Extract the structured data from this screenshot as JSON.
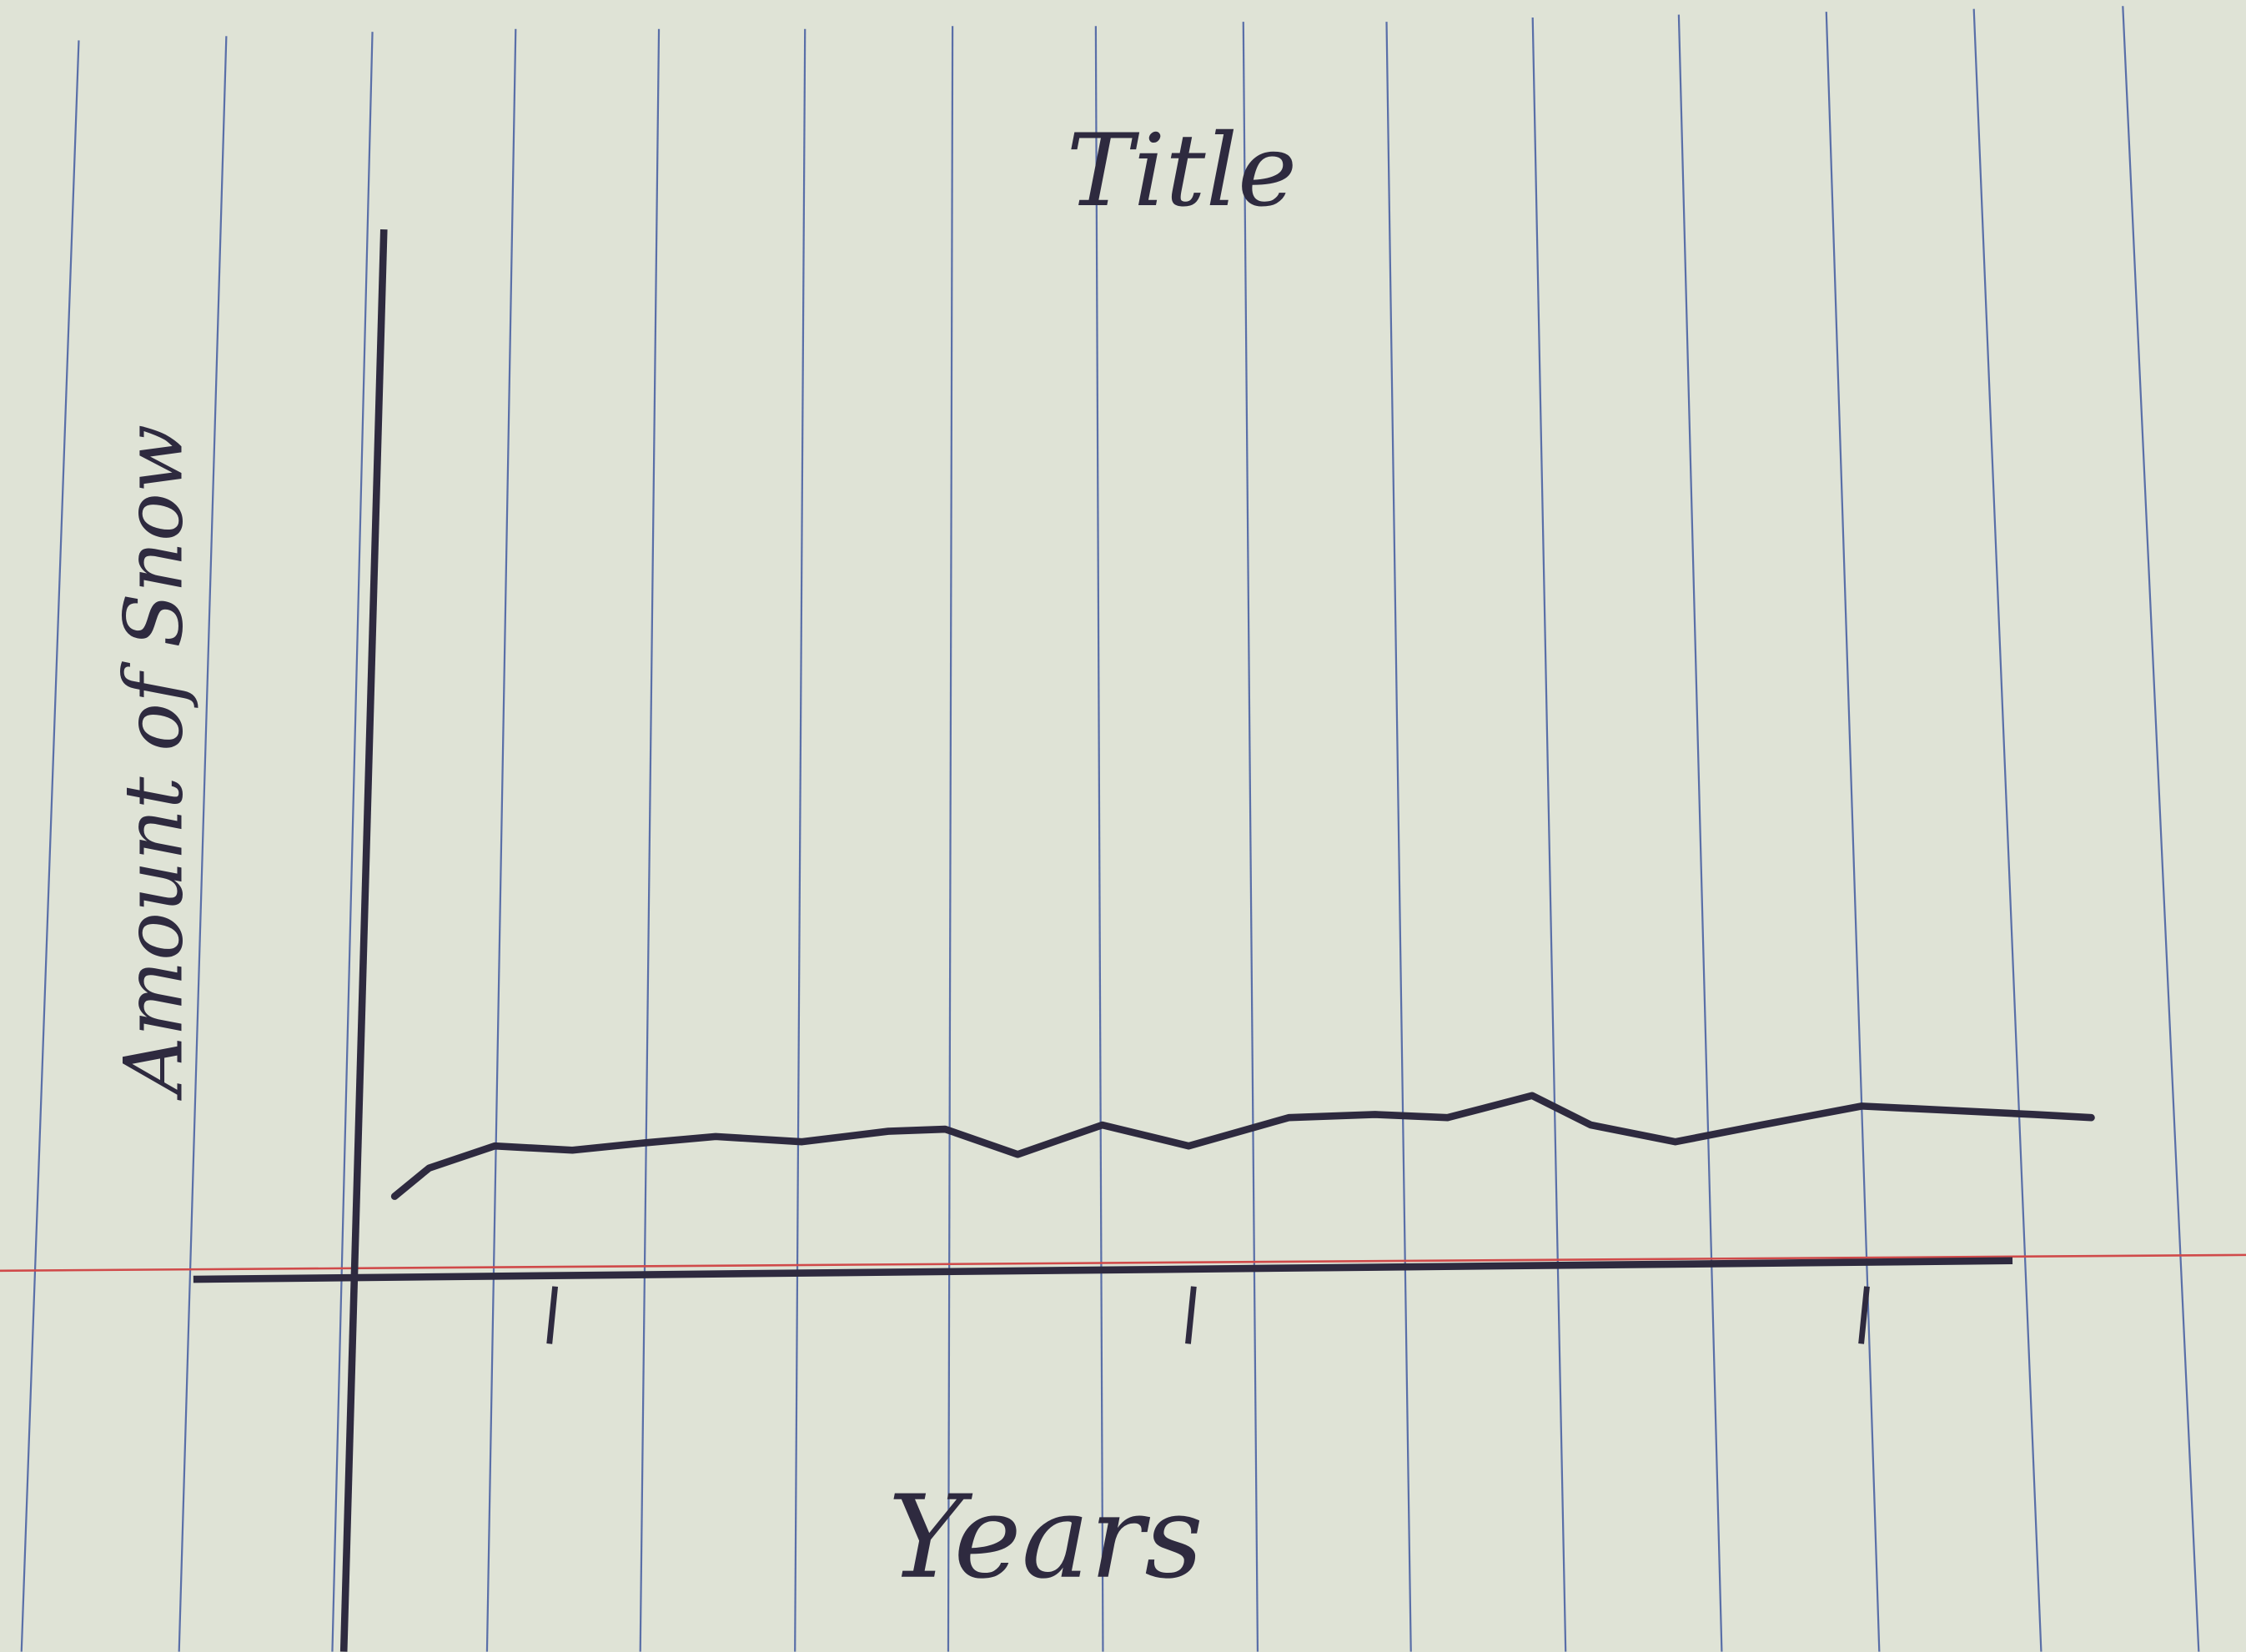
{
  "chart_data": {
    "type": "line",
    "title": "Title",
    "x_label": "Years",
    "y_label": "Amount of Snow",
    "x": [
      1.7,
      3.7,
      7.5,
      12,
      16.2,
      20.3,
      25.3,
      30.3,
      33.6,
      37.8,
      42.7,
      47.7,
      53.5,
      58.5,
      62.7,
      67.6,
      71,
      75.9,
      80.9,
      86.7,
      91.7,
      96.7,
      100
    ],
    "values": [
      7.9,
      10.6,
      12.7,
      12.3,
      13,
      13.6,
      13.1,
      14.1,
      14.3,
      11.9,
      14.7,
      12.7,
      15.4,
      15.7,
      15.4,
      17.5,
      14.7,
      13.1,
      14.7,
      16.5,
      16.1,
      15.7,
      15.4
    ],
    "color": "#2e2a3f",
    "xlim": [
      0,
      100
    ],
    "ylim": [
      0,
      100
    ],
    "xticks": [
      11,
      48,
      87
    ]
  }
}
